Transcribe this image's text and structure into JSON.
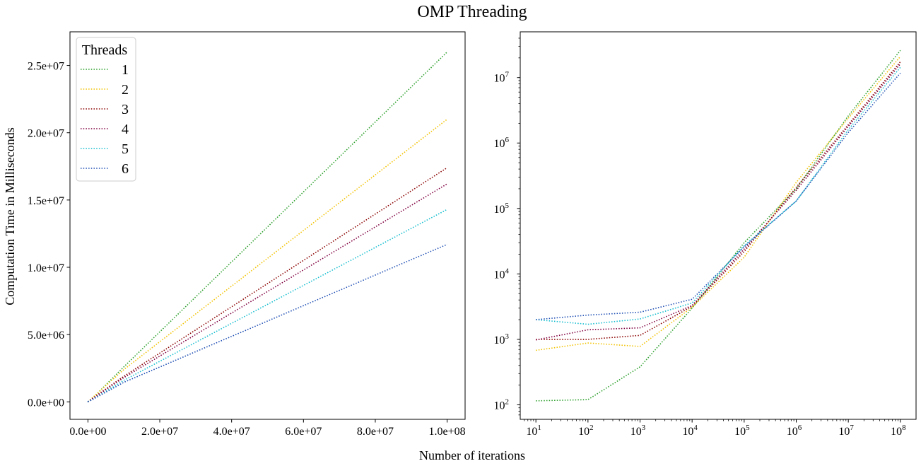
{
  "figure": {
    "title": "OMP Threading",
    "xlabel": "Number of iterations",
    "ylabel": "Computation Time in Milliseconds"
  },
  "legend": {
    "title": "Threads",
    "placement": "upper-left"
  },
  "colors": {
    "1": "#2ca02c",
    "2": "#f2c200",
    "3": "#8b0000",
    "4": "#800040",
    "5": "#17becf",
    "6": "#1f4fb4"
  },
  "chart_data": [
    {
      "type": "line",
      "scale": "linear",
      "line_style": "dotted",
      "x": [
        10,
        100,
        1000,
        10000,
        100000,
        1000000,
        10000000,
        100000000
      ],
      "xlim": [
        -5000000,
        105000000
      ],
      "ylim": [
        -1300000,
        27500000
      ],
      "xticks": [
        0,
        20000000,
        40000000,
        60000000,
        80000000,
        100000000
      ],
      "xtick_labels": [
        "0.0e+00",
        "2.0e+07",
        "4.0e+07",
        "6.0e+07",
        "8.0e+07",
        "1.0e+08"
      ],
      "yticks": [
        0,
        5000000,
        10000000,
        15000000,
        20000000,
        25000000
      ],
      "ytick_labels": [
        "0.0e+00",
        "5.0e+06",
        "1.0e+07",
        "1.5e+07",
        "2.0e+07",
        "2.5e+07"
      ],
      "grid": false,
      "legend": "top-left",
      "series": [
        {
          "name": "1",
          "values": [
            115,
            120,
            380,
            3000,
            30000,
            200000,
            2600000,
            26000000
          ]
        },
        {
          "name": "2",
          "values": [
            680,
            880,
            780,
            3100,
            18000,
            250000,
            2400000,
            21000000
          ]
        },
        {
          "name": "3",
          "values": [
            1000,
            1000,
            1150,
            3200,
            22000,
            210000,
            1900000,
            17400000
          ]
        },
        {
          "name": "4",
          "values": [
            980,
            1400,
            1500,
            3300,
            24000,
            190000,
            1800000,
            16200000
          ]
        },
        {
          "name": "5",
          "values": [
            2000,
            1700,
            2050,
            3600,
            27000,
            130000,
            1600000,
            14300000
          ]
        },
        {
          "name": "6",
          "values": [
            2000,
            2350,
            2600,
            4100,
            26000,
            130000,
            1450000,
            11700000
          ]
        }
      ]
    },
    {
      "type": "line",
      "scale": "log",
      "line_style": "dotted",
      "x": [
        10,
        100,
        1000,
        10000,
        100000,
        1000000,
        10000000,
        100000000
      ],
      "xlim": [
        5,
        200000000
      ],
      "ylim": [
        60,
        50000000
      ],
      "xticks": [
        10,
        100,
        1000,
        10000,
        100000,
        1000000,
        10000000,
        100000000
      ],
      "xtick_labels": [
        {
          "base": "10",
          "exp": "1"
        },
        {
          "base": "10",
          "exp": "2"
        },
        {
          "base": "10",
          "exp": "3"
        },
        {
          "base": "10",
          "exp": "4"
        },
        {
          "base": "10",
          "exp": "5"
        },
        {
          "base": "10",
          "exp": "6"
        },
        {
          "base": "10",
          "exp": "7"
        },
        {
          "base": "10",
          "exp": "8"
        }
      ],
      "yticks": [
        100,
        1000,
        10000,
        100000,
        1000000,
        10000000
      ],
      "ytick_labels": [
        {
          "base": "10",
          "exp": "2"
        },
        {
          "base": "10",
          "exp": "3"
        },
        {
          "base": "10",
          "exp": "4"
        },
        {
          "base": "10",
          "exp": "5"
        },
        {
          "base": "10",
          "exp": "6"
        },
        {
          "base": "10",
          "exp": "7"
        }
      ],
      "grid": false,
      "series": [
        {
          "name": "1",
          "values": [
            115,
            120,
            380,
            3000,
            30000,
            200000,
            2600000,
            26000000
          ]
        },
        {
          "name": "2",
          "values": [
            680,
            880,
            780,
            3100,
            18000,
            250000,
            2400000,
            21000000
          ]
        },
        {
          "name": "3",
          "values": [
            1000,
            1000,
            1150,
            3200,
            22000,
            210000,
            1900000,
            17400000
          ]
        },
        {
          "name": "4",
          "values": [
            980,
            1400,
            1500,
            3300,
            24000,
            190000,
            1800000,
            16200000
          ]
        },
        {
          "name": "5",
          "values": [
            2000,
            1700,
            2050,
            3600,
            27000,
            130000,
            1600000,
            14300000
          ]
        },
        {
          "name": "6",
          "values": [
            2000,
            2350,
            2600,
            4100,
            26000,
            130000,
            1450000,
            11700000
          ]
        }
      ]
    }
  ]
}
